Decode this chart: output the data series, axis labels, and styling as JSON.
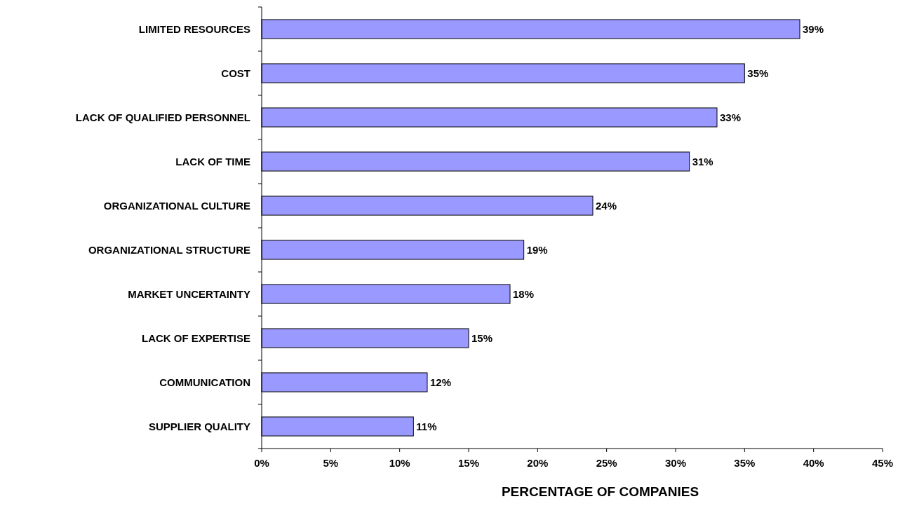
{
  "chart_data": {
    "type": "bar",
    "orientation": "horizontal",
    "xlabel": "PERCENTAGE OF COMPANIES",
    "categories": [
      "LIMITED RESOURCES",
      "COST",
      "LACK OF QUALIFIED PERSONNEL",
      "LACK OF TIME",
      "ORGANIZATIONAL CULTURE",
      "ORGANIZATIONAL STRUCTURE",
      "MARKET UNCERTAINTY",
      "LACK OF EXPERTISE",
      "COMMUNICATION",
      "SUPPLIER QUALITY"
    ],
    "values": [
      39,
      35,
      33,
      31,
      24,
      19,
      18,
      15,
      12,
      11
    ],
    "value_labels": [
      "39%",
      "35%",
      "33%",
      "31%",
      "24%",
      "19%",
      "18%",
      "15%",
      "12%",
      "11%"
    ],
    "color": "#9999ff",
    "xlim": [
      0,
      45
    ],
    "xticks": [
      {
        "value": 0,
        "label": "0%"
      },
      {
        "value": 5,
        "label": "5%"
      },
      {
        "value": 10,
        "label": "10%"
      },
      {
        "value": 15,
        "label": "15%"
      },
      {
        "value": 20,
        "label": "20%"
      },
      {
        "value": 25,
        "label": "25%"
      },
      {
        "value": 30,
        "label": "30%"
      },
      {
        "value": 35,
        "label": "35%"
      },
      {
        "value": 40,
        "label": "40%"
      },
      {
        "value": 45,
        "label": "45%"
      }
    ],
    "grid": false
  }
}
